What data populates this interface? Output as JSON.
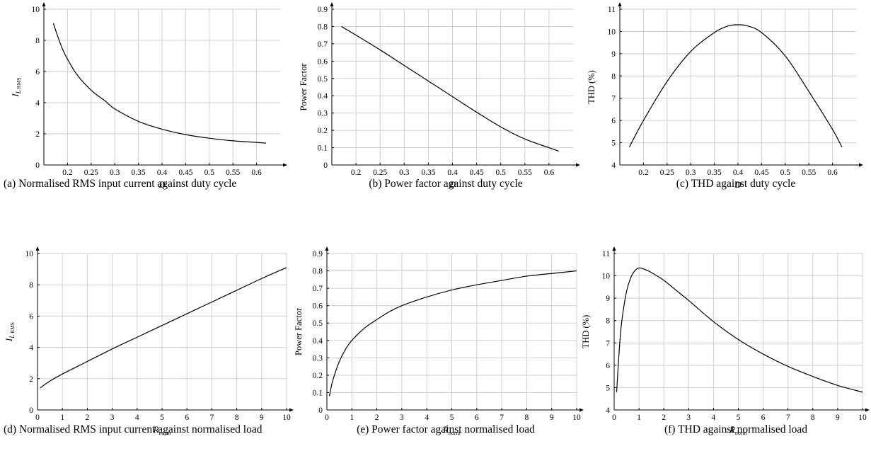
{
  "figure": {
    "captions": {
      "a": "(a) Normalised RMS input current against duty cycle",
      "b": "(b) Power factor against duty cycle",
      "c": "(c) THD against duty cycle",
      "d": "(d) Normalised RMS input current against normalised load",
      "e": "(e) Power factor against normalised load",
      "f": "(f) THD against normalised load"
    }
  },
  "chart_data": [
    {
      "id": "a",
      "type": "line",
      "title": "",
      "xlabel": "D",
      "ylabel": "I_L RMS",
      "xlim": [
        0.15,
        0.65
      ],
      "ylim": [
        0,
        10
      ],
      "xticks": [
        0.2,
        0.25,
        0.3,
        0.35,
        0.4,
        0.45,
        0.5,
        0.55,
        0.6
      ],
      "yticks": [
        0,
        2,
        4,
        6,
        8,
        10
      ],
      "xtick_labels": [
        "0.2",
        "0.25",
        "0.3",
        "0.35",
        "0.4",
        "0.45",
        "0.5",
        "0.55",
        "0.6"
      ],
      "ytick_labels": [
        "0",
        "2",
        "4",
        "6",
        "8",
        "10"
      ],
      "grid": true,
      "series": [
        {
          "x": [
            0.17,
            0.18,
            0.19,
            0.2,
            0.22,
            0.25,
            0.28,
            0.3,
            0.35,
            0.4,
            0.45,
            0.5,
            0.55,
            0.6,
            0.62
          ],
          "values": [
            9.1,
            8.2,
            7.4,
            6.8,
            5.8,
            4.8,
            4.1,
            3.6,
            2.8,
            2.3,
            1.95,
            1.72,
            1.55,
            1.45,
            1.4
          ]
        }
      ]
    },
    {
      "id": "b",
      "type": "line",
      "title": "",
      "xlabel": "D",
      "ylabel": "Power Factor",
      "xlim": [
        0.15,
        0.65
      ],
      "ylim": [
        0,
        0.9
      ],
      "xticks": [
        0.2,
        0.25,
        0.3,
        0.35,
        0.4,
        0.45,
        0.5,
        0.55,
        0.6
      ],
      "yticks": [
        0,
        0.1,
        0.2,
        0.3,
        0.4,
        0.5,
        0.6,
        0.7,
        0.8,
        0.9
      ],
      "xtick_labels": [
        "0.2",
        "0.25",
        "0.3",
        "0.35",
        "0.4",
        "0.45",
        "0.5",
        "0.55",
        "0.6"
      ],
      "ytick_labels": [
        "0",
        "0.1",
        "0.2",
        "0.3",
        "0.4",
        "0.5",
        "0.6",
        "0.7",
        "0.8",
        "0.9"
      ],
      "grid": true,
      "series": [
        {
          "x": [
            0.17,
            0.2,
            0.25,
            0.3,
            0.35,
            0.4,
            0.45,
            0.5,
            0.55,
            0.6,
            0.62
          ],
          "values": [
            0.8,
            0.75,
            0.665,
            0.575,
            0.485,
            0.395,
            0.305,
            0.22,
            0.15,
            0.1,
            0.08
          ]
        }
      ]
    },
    {
      "id": "c",
      "type": "line",
      "title": "",
      "xlabel": "D",
      "ylabel": "THD (%)",
      "xlim": [
        0.15,
        0.65
      ],
      "ylim": [
        4,
        11
      ],
      "xticks": [
        0.2,
        0.25,
        0.3,
        0.35,
        0.4,
        0.45,
        0.5,
        0.55,
        0.6
      ],
      "yticks": [
        4,
        5,
        6,
        7,
        8,
        9,
        10,
        11
      ],
      "xtick_labels": [
        "0.2",
        "0.25",
        "0.3",
        "0.35",
        "0.4",
        "0.45",
        "0.5",
        "0.55",
        "0.6"
      ],
      "ytick_labels": [
        "4",
        "5",
        "6",
        "7",
        "8",
        "9",
        "10",
        "11"
      ],
      "grid": true,
      "series": [
        {
          "x": [
            0.17,
            0.2,
            0.25,
            0.3,
            0.35,
            0.38,
            0.4,
            0.42,
            0.45,
            0.5,
            0.55,
            0.6,
            0.62
          ],
          "values": [
            4.8,
            6.0,
            7.75,
            9.1,
            9.95,
            10.25,
            10.3,
            10.25,
            9.95,
            8.9,
            7.3,
            5.6,
            4.8
          ]
        }
      ]
    },
    {
      "id": "d",
      "type": "line",
      "title": "",
      "xlabel": "R_norm",
      "ylabel": "I_L RMS",
      "xlim": [
        0,
        10
      ],
      "ylim": [
        0,
        10
      ],
      "xticks": [
        0,
        1,
        2,
        3,
        4,
        5,
        6,
        7,
        8,
        9,
        10
      ],
      "yticks": [
        0,
        2,
        4,
        6,
        8,
        10
      ],
      "xtick_labels": [
        "0",
        "1",
        "2",
        "3",
        "4",
        "5",
        "6",
        "7",
        "8",
        "9",
        "10"
      ],
      "ytick_labels": [
        "0",
        "2",
        "4",
        "6",
        "8",
        "10"
      ],
      "grid": true,
      "series": [
        {
          "x": [
            0.1,
            0.5,
            1,
            2,
            3,
            4,
            5,
            6,
            7,
            8,
            9,
            10
          ],
          "values": [
            1.4,
            1.85,
            2.3,
            3.1,
            3.9,
            4.65,
            5.4,
            6.15,
            6.9,
            7.65,
            8.4,
            9.1
          ]
        }
      ]
    },
    {
      "id": "e",
      "type": "line",
      "title": "",
      "xlabel": "R_norm",
      "ylabel": "Power Factor",
      "xlim": [
        0,
        10
      ],
      "ylim": [
        0,
        0.9
      ],
      "xticks": [
        0,
        1,
        2,
        3,
        4,
        5,
        6,
        7,
        8,
        9,
        10
      ],
      "yticks": [
        0,
        0.1,
        0.2,
        0.3,
        0.4,
        0.5,
        0.6,
        0.7,
        0.8,
        0.9
      ],
      "xtick_labels": [
        "0",
        "1",
        "2",
        "3",
        "4",
        "5",
        "6",
        "7",
        "8",
        "9",
        "10"
      ],
      "ytick_labels": [
        "0",
        "0.1",
        "0.2",
        "0.3",
        "0.4",
        "0.5",
        "0.6",
        "0.7",
        "0.8",
        "0.9"
      ],
      "grid": true,
      "series": [
        {
          "x": [
            0.1,
            0.2,
            0.3,
            0.5,
            0.75,
            1,
            1.5,
            2,
            2.5,
            3,
            4,
            5,
            6,
            7,
            8,
            9,
            10
          ],
          "values": [
            0.08,
            0.15,
            0.2,
            0.28,
            0.35,
            0.4,
            0.47,
            0.52,
            0.565,
            0.6,
            0.65,
            0.69,
            0.72,
            0.745,
            0.77,
            0.785,
            0.8
          ]
        }
      ]
    },
    {
      "id": "f",
      "type": "line",
      "title": "",
      "xlabel": "R_norm",
      "ylabel": "THD (%)",
      "xlim": [
        0,
        10
      ],
      "ylim": [
        4,
        11
      ],
      "xticks": [
        0,
        1,
        2,
        3,
        4,
        5,
        6,
        7,
        8,
        9,
        10
      ],
      "yticks": [
        4,
        5,
        6,
        7,
        8,
        9,
        10,
        11
      ],
      "xtick_labels": [
        "0",
        "1",
        "2",
        "3",
        "4",
        "5",
        "6",
        "7",
        "8",
        "9",
        "10"
      ],
      "ytick_labels": [
        "4",
        "5",
        "6",
        "7",
        "8",
        "9",
        "10",
        "11"
      ],
      "grid": true,
      "series": [
        {
          "x": [
            0.1,
            0.2,
            0.3,
            0.5,
            0.7,
            0.9,
            1.05,
            1.2,
            1.5,
            2,
            2.5,
            3,
            4,
            5,
            6,
            7,
            8,
            9,
            10
          ],
          "values": [
            4.8,
            6.6,
            7.9,
            9.3,
            10.0,
            10.3,
            10.35,
            10.3,
            10.15,
            9.8,
            9.35,
            8.9,
            7.95,
            7.15,
            6.5,
            5.95,
            5.5,
            5.1,
            4.8
          ]
        }
      ]
    }
  ]
}
